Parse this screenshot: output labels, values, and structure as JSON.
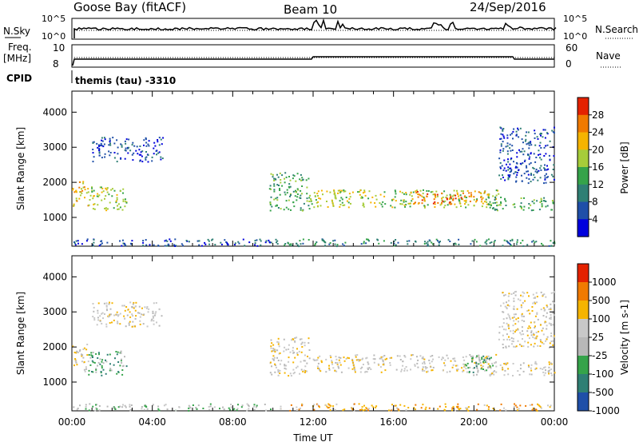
{
  "header": {
    "station": "Goose Bay (fitACF)",
    "beam": "Beam 10",
    "date": "24/Sep/2016"
  },
  "noise_panel": {
    "left_label": "N.Sky",
    "right_label": "N.Search",
    "left_ticks": [
      "10^5",
      "10^0"
    ],
    "right_ticks": [
      "10^5",
      "10^0"
    ]
  },
  "freq_panel": {
    "left_label_1": "Freq.",
    "left_label_2": "[MHz]",
    "left_ticks": [
      "10",
      "8"
    ],
    "right_label": "Nave",
    "right_ticks": [
      "60",
      "0"
    ]
  },
  "cpid": {
    "label": "CPID",
    "value": "themis (tau) -3310"
  },
  "colors": {
    "power_scale": [
      "#0000dd",
      "#1f4fa8",
      "#2f7f74",
      "#35a34a",
      "#a6cc3a",
      "#f5b400",
      "#f07a00",
      "#e42200"
    ],
    "velocity_scale": [
      "#1f4fa8",
      "#2f7f74",
      "#35a34a",
      "#b8b8b8",
      "#c8c8c8",
      "#f5b400",
      "#f07a00",
      "#e42200"
    ]
  },
  "chart_data": [
    {
      "type": "heatmap",
      "title": "",
      "xlabel": "",
      "ylabel": "Slant Range [km]",
      "xlim_hours": [
        0,
        24
      ],
      "ylim_km": [
        180,
        4600
      ],
      "y_ticks": [
        "4000",
        "3000",
        "2000",
        "1000"
      ],
      "colorbar": {
        "label": "Power [dB]",
        "ticks": [
          "28",
          "24",
          "20",
          "16",
          "12",
          "8",
          "4"
        ]
      },
      "scatter_regions": [
        {
          "x": [
            0.0,
            0.8
          ],
          "y": [
            1300,
            2100
          ],
          "level": 5
        },
        {
          "x": [
            0.8,
            2.7
          ],
          "y": [
            1200,
            1900
          ],
          "level": 4
        },
        {
          "x": [
            1.0,
            4.5
          ],
          "y": [
            2600,
            3300
          ],
          "level": 1
        },
        {
          "x": [
            0.0,
            10.0
          ],
          "y": [
            200,
            400
          ],
          "level": 1
        },
        {
          "x": [
            9.8,
            11.8
          ],
          "y": [
            1200,
            2300
          ],
          "level": 3
        },
        {
          "x": [
            11.8,
            21.2
          ],
          "y": [
            1300,
            1800
          ],
          "level": 4
        },
        {
          "x": [
            17.0,
            20.5
          ],
          "y": [
            1400,
            1800
          ],
          "level": 6
        },
        {
          "x": [
            20.5,
            24.0
          ],
          "y": [
            1200,
            1600
          ],
          "level": 3
        },
        {
          "x": [
            21.2,
            24.0
          ],
          "y": [
            2000,
            3600
          ],
          "level": 1
        },
        {
          "x": [
            10.0,
            24.0
          ],
          "y": [
            200,
            400
          ],
          "level": 2
        }
      ]
    },
    {
      "type": "heatmap",
      "title": "",
      "xlabel": "Time UT",
      "ylabel": "Slant Range [km]",
      "xlim_hours": [
        0,
        24
      ],
      "ylim_km": [
        180,
        4600
      ],
      "y_ticks": [
        "4000",
        "3000",
        "2000",
        "1000"
      ],
      "x_ticks": [
        "00:00",
        "04:00",
        "08:00",
        "12:00",
        "16:00",
        "20:00",
        "00:00"
      ],
      "colorbar": {
        "label": "Velocity [m s-1]",
        "ticks": [
          "1000",
          "500",
          "100",
          "25",
          "-25",
          "-100",
          "-500",
          "-1000"
        ]
      },
      "scatter_regions": [
        {
          "x": [
            0.0,
            0.8
          ],
          "y": [
            1300,
            2100
          ],
          "level": 4
        },
        {
          "x": [
            0.8,
            2.7
          ],
          "y": [
            1200,
            1900
          ],
          "level": 2
        },
        {
          "x": [
            1.0,
            4.5
          ],
          "y": [
            2600,
            3300
          ],
          "level": 4
        },
        {
          "x": [
            0.0,
            10.0
          ],
          "y": [
            200,
            400
          ],
          "level": 3
        },
        {
          "x": [
            9.8,
            11.8
          ],
          "y": [
            1200,
            2300
          ],
          "level": 4
        },
        {
          "x": [
            11.8,
            21.2
          ],
          "y": [
            1300,
            1800
          ],
          "level": 4
        },
        {
          "x": [
            19.5,
            21.0
          ],
          "y": [
            1200,
            1800
          ],
          "level": 2
        },
        {
          "x": [
            20.5,
            24.0
          ],
          "y": [
            1200,
            1600
          ],
          "level": 4
        },
        {
          "x": [
            21.2,
            24.0
          ],
          "y": [
            2000,
            3600
          ],
          "level": 4
        },
        {
          "x": [
            10.0,
            24.0
          ],
          "y": [
            200,
            400
          ],
          "level": 5
        }
      ]
    }
  ]
}
